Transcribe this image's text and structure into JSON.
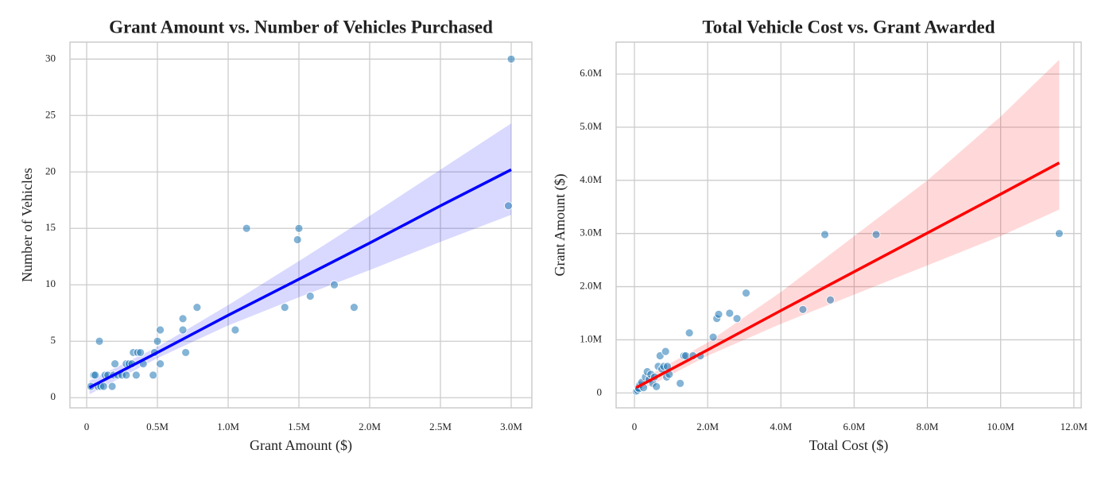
{
  "chart_data": [
    {
      "type": "scatter",
      "title": "Grant Amount vs. Number of Vehicles Purchased",
      "x_label": "Grant Amount ($)",
      "y_label": "Number of Vehicles",
      "x": [
        30000,
        50000,
        60000,
        80000,
        90000,
        100000,
        120000,
        130000,
        150000,
        180000,
        190000,
        200000,
        220000,
        250000,
        280000,
        280000,
        300000,
        320000,
        330000,
        350000,
        360000,
        380000,
        400000,
        470000,
        480000,
        500000,
        520000,
        520000,
        680000,
        680000,
        700000,
        780000,
        1050000,
        1130000,
        1400000,
        1490000,
        1500000,
        1580000,
        1750000,
        1890000,
        2980000,
        3000000
      ],
      "values": [
        1,
        2,
        2,
        1,
        5,
        1,
        1,
        2,
        2,
        1,
        2,
        3,
        2,
        2,
        3,
        2,
        3,
        3,
        4,
        2,
        4,
        4,
        3,
        2,
        4,
        5,
        6,
        3,
        6,
        7,
        4,
        8,
        6,
        15,
        8,
        14,
        15,
        9,
        10,
        8,
        17,
        30
      ],
      "color": "#1f77b4",
      "fit": {
        "x": [
          20000,
          500000,
          1000000,
          1500000,
          2000000,
          2500000,
          3000000
        ],
        "values": [
          0.9,
          4.0,
          7.3,
          10.5,
          13.7,
          17.0,
          20.2
        ],
        "lower": [
          0.3,
          3.5,
          6.4,
          8.9,
          11.3,
          13.8,
          16.2
        ],
        "upper": [
          1.5,
          4.5,
          8.2,
          12.1,
          16.1,
          20.2,
          24.3
        ],
        "color": "#0000ff"
      },
      "xlim": [
        -118000,
        3146000
      ],
      "ylim": [
        -0.9,
        31.5
      ],
      "xticks": [
        0,
        {
          "value": 500000,
          "label": "0.5M"
        },
        {
          "value": 1000000,
          "label": "1.0M"
        },
        {
          "value": 1500000,
          "label": "1.5M"
        },
        {
          "value": 2000000,
          "label": "2.0M"
        },
        {
          "value": 2500000,
          "label": "2.5M"
        },
        {
          "value": 3000000,
          "label": "3.0M"
        }
      ],
      "yticks": [
        0,
        5,
        10,
        15,
        20,
        25,
        30
      ],
      "grid": true
    },
    {
      "type": "scatter",
      "title": "Total Vehicle Cost vs. Grant Awarded",
      "x_label": "Total Cost ($)",
      "y_label": "Grant Amount ($)",
      "x": [
        50000,
        80000,
        100000,
        120000,
        150000,
        200000,
        250000,
        300000,
        350000,
        400000,
        450000,
        500000,
        550000,
        600000,
        650000,
        700000,
        750000,
        800000,
        850000,
        880000,
        900000,
        950000,
        1250000,
        1350000,
        1400000,
        1500000,
        1600000,
        1800000,
        2150000,
        2250000,
        2300000,
        2600000,
        2800000,
        3050000,
        4600000,
        5200000,
        5350000,
        6600000,
        11600000
      ],
      "values": [
        30000,
        50000,
        100000,
        80000,
        150000,
        200000,
        100000,
        300000,
        400000,
        250000,
        350000,
        180000,
        300000,
        120000,
        500000,
        700000,
        450000,
        500000,
        780000,
        300000,
        500000,
        350000,
        180000,
        700000,
        700000,
        1130000,
        700000,
        700000,
        1050000,
        1400000,
        1480000,
        1500000,
        1400000,
        1880000,
        1570000,
        2980000,
        1750000,
        2980000,
        3000000
      ],
      "color": "#1f77b4",
      "fit": {
        "x": [
          50000,
          2000000,
          4000000,
          6000000,
          8000000,
          10000000,
          11600000
        ],
        "values": [
          100000,
          810000,
          1550000,
          2280000,
          3010000,
          3740000,
          4330000
        ],
        "lower": [
          0,
          700000,
          1300000,
          1850000,
          2400000,
          2950000,
          3450000
        ],
        "upper": [
          200000,
          950000,
          1900000,
          2950000,
          4000000,
          5200000,
          6270000
        ],
        "color": "#ff0000"
      },
      "xlim": [
        -500000,
        12200000
      ],
      "ylim": [
        -280000,
        6600000
      ],
      "xticks": [
        0,
        {
          "value": 2000000,
          "label": "2.0M"
        },
        {
          "value": 4000000,
          "label": "4.0M"
        },
        {
          "value": 6000000,
          "label": "6.0M"
        },
        {
          "value": 8000000,
          "label": "8.0M"
        },
        {
          "value": 10000000,
          "label": "10.0M"
        },
        {
          "value": 12000000,
          "label": "12.0M"
        }
      ],
      "yticks": [
        0,
        {
          "value": 1000000,
          "label": "1.0M"
        },
        {
          "value": 2000000,
          "label": "2.0M"
        },
        {
          "value": 3000000,
          "label": "3.0M"
        },
        {
          "value": 4000000,
          "label": "4.0M"
        },
        {
          "value": 5000000,
          "label": "5.0M"
        },
        {
          "value": 6000000,
          "label": "6.0M"
        }
      ],
      "grid": true
    }
  ]
}
